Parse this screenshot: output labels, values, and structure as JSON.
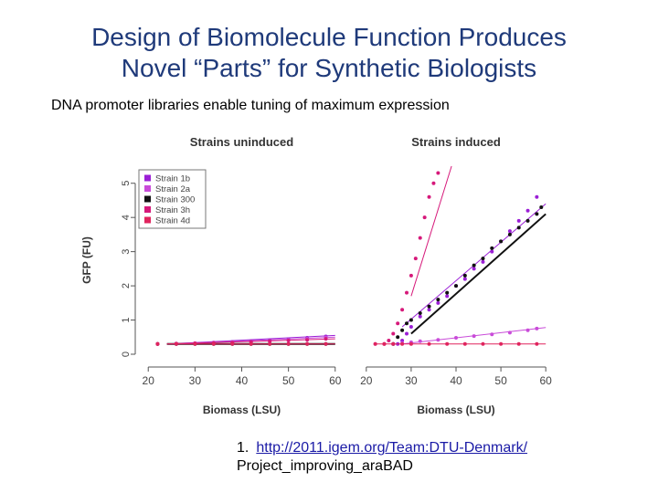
{
  "slide": {
    "title_line1": "Design of Biomolecule Function Produces",
    "title_line2": "Novel “Parts” for Synthetic Biologists",
    "subtitle": "DNA promoter libraries enable tuning of maximum expression",
    "ref_number": "1.",
    "ref_link": "http://2011.igem.org/Team:DTU-Denmark/",
    "ref_rest": "Project_improving_araBAD"
  },
  "colors": {
    "title": "#1f3a7a",
    "link": "#1a1aa6"
  },
  "chart_data": [
    {
      "type": "scatter",
      "title": "Strains uninduced",
      "xlabel": "Biomass (LSU)",
      "ylabel": "GFP (FU)",
      "xlim": [
        18,
        62
      ],
      "ylim": [
        0,
        5.5
      ],
      "xticks": [
        20,
        30,
        40,
        50,
        60
      ],
      "yticks": [
        0,
        1,
        2,
        3,
        4,
        5
      ],
      "legend_position": "top-left",
      "series": [
        {
          "name": "Strain 1b",
          "color": "#9b1fd6",
          "x": [
            22,
            26,
            30,
            34,
            38,
            42,
            46,
            50,
            54,
            58
          ],
          "y": [
            0.3,
            0.31,
            0.32,
            0.34,
            0.36,
            0.38,
            0.41,
            0.44,
            0.48,
            0.52
          ],
          "fit": [
            [
              24,
              0.3
            ],
            [
              60,
              0.55
            ]
          ]
        },
        {
          "name": "Strain 2a",
          "color": "#c94bd9",
          "x": [
            22,
            26,
            30,
            34,
            38,
            42,
            46,
            50,
            54,
            58
          ],
          "y": [
            0.3,
            0.3,
            0.31,
            0.33,
            0.35,
            0.37,
            0.39,
            0.42,
            0.45,
            0.49
          ],
          "fit": [
            [
              24,
              0.3
            ],
            [
              60,
              0.5
            ]
          ]
        },
        {
          "name": "Strain 300",
          "color": "#111111",
          "x": [
            22,
            26,
            30,
            34,
            38,
            42,
            46,
            50,
            54,
            58
          ],
          "y": [
            0.3,
            0.3,
            0.3,
            0.3,
            0.3,
            0.3,
            0.3,
            0.3,
            0.3,
            0.3
          ],
          "fit": [
            [
              24,
              0.3
            ],
            [
              60,
              0.3
            ]
          ]
        },
        {
          "name": "Strain 3h",
          "color": "#d6197a",
          "x": [
            22,
            26,
            30,
            34,
            38,
            42,
            46,
            50,
            54,
            58
          ],
          "y": [
            0.3,
            0.31,
            0.32,
            0.33,
            0.34,
            0.36,
            0.38,
            0.4,
            0.42,
            0.45
          ],
          "fit": [
            [
              24,
              0.3
            ],
            [
              60,
              0.45
            ]
          ]
        },
        {
          "name": "Strain 4d",
          "color": "#e0245e",
          "x": [
            22,
            26,
            30,
            34,
            38,
            42,
            46,
            50,
            54,
            58
          ],
          "y": [
            0.3,
            0.3,
            0.3,
            0.3,
            0.3,
            0.3,
            0.3,
            0.3,
            0.3,
            0.3
          ],
          "fit": [
            [
              24,
              0.3
            ],
            [
              60,
              0.3
            ]
          ]
        }
      ]
    },
    {
      "type": "scatter",
      "title": "Strains induced",
      "xlabel": "Biomass (LSU)",
      "ylabel": "",
      "xlim": [
        18,
        62
      ],
      "ylim": [
        0,
        5.5
      ],
      "xticks": [
        20,
        30,
        40,
        50,
        60
      ],
      "yticks": [],
      "series": [
        {
          "name": "Strain 1b",
          "color": "#9b1fd6",
          "x": [
            27,
            28,
            29,
            30,
            32,
            34,
            36,
            38,
            40,
            42,
            44,
            46,
            48,
            50,
            52,
            54,
            56,
            58
          ],
          "y": [
            0.3,
            0.4,
            0.6,
            0.8,
            1.1,
            1.3,
            1.5,
            1.7,
            2.0,
            2.2,
            2.5,
            2.7,
            3.0,
            3.3,
            3.6,
            3.9,
            4.2,
            4.6
          ],
          "fit": [
            [
              28,
              0.8
            ],
            [
              60,
              4.4
            ]
          ]
        },
        {
          "name": "Strain 2a",
          "color": "#c94bd9",
          "x": [
            22,
            24,
            26,
            28,
            30,
            32,
            36,
            40,
            44,
            48,
            52,
            56,
            58
          ],
          "y": [
            0.3,
            0.3,
            0.3,
            0.32,
            0.35,
            0.38,
            0.42,
            0.48,
            0.53,
            0.58,
            0.63,
            0.7,
            0.75
          ],
          "fit": [
            [
              28,
              0.3
            ],
            [
              60,
              0.78
            ]
          ]
        },
        {
          "name": "Strain 300",
          "color": "#111111",
          "x": [
            26,
            27,
            28,
            29,
            30,
            32,
            34,
            36,
            38,
            40,
            42,
            44,
            46,
            48,
            50,
            52,
            54,
            56,
            58,
            59
          ],
          "y": [
            0.3,
            0.5,
            0.7,
            0.9,
            1.0,
            1.2,
            1.4,
            1.6,
            1.8,
            2.0,
            2.3,
            2.6,
            2.8,
            3.1,
            3.3,
            3.5,
            3.7,
            3.9,
            4.1,
            4.3
          ],
          "fit": [
            [
              30,
              0.6
            ],
            [
              60,
              4.1
            ]
          ]
        },
        {
          "name": "Strain 3h",
          "color": "#d6197a",
          "x": [
            24,
            25,
            26,
            27,
            28,
            29,
            30,
            31,
            32,
            33,
            34,
            35,
            36
          ],
          "y": [
            0.3,
            0.4,
            0.6,
            0.9,
            1.3,
            1.8,
            2.3,
            2.8,
            3.4,
            4.0,
            4.6,
            5.0,
            5.3
          ],
          "fit": [
            [
              30,
              1.7
            ],
            [
              39,
              5.5
            ]
          ]
        },
        {
          "name": "Strain 4d",
          "color": "#e0245e",
          "x": [
            22,
            24,
            26,
            28,
            30,
            34,
            38,
            42,
            46,
            50,
            54,
            58
          ],
          "y": [
            0.3,
            0.3,
            0.3,
            0.3,
            0.3,
            0.3,
            0.3,
            0.3,
            0.3,
            0.3,
            0.3,
            0.3
          ],
          "fit": [
            [
              22,
              0.3
            ],
            [
              60,
              0.3
            ]
          ]
        }
      ]
    }
  ]
}
